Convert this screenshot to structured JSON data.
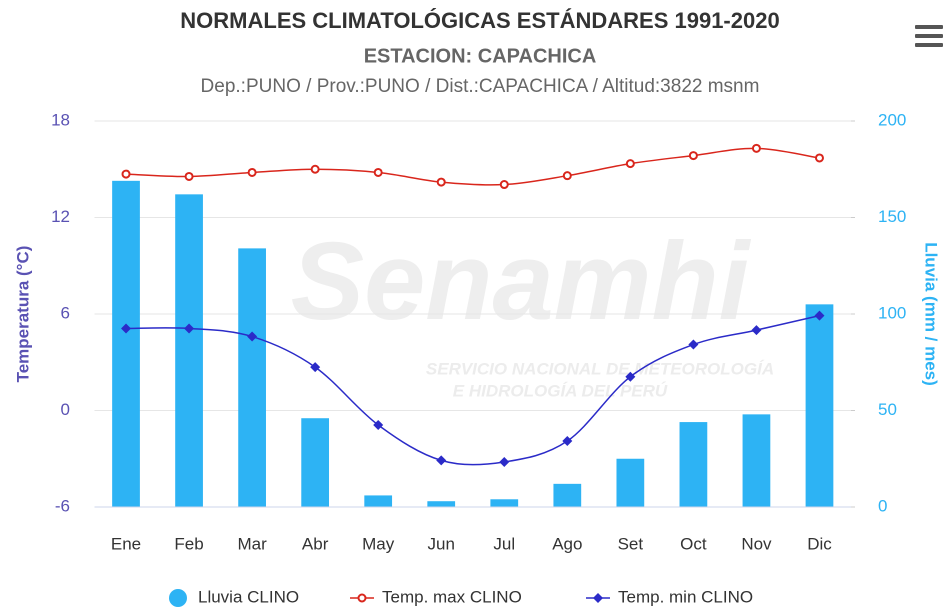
{
  "chart_data": {
    "type": "bar",
    "title": "NORMALES CLIMATOLÓGICAS ESTÁNDARES 1991-2020",
    "subtitle": "ESTACION: CAPACHICA",
    "caption": "Dep.:PUNO / Prov.:PUNO / Dist.:CAPACHICA / Altitud:3822 msnm",
    "watermark": "Senamhi",
    "watermark_lines": [
      "SERVICIO NACIONAL DE METEOROLOGÍA",
      "E HIDROLOGÍA DEL PERÚ"
    ],
    "ylabel": "Temperatura (°C)",
    "y2label": "Lluvia (mm / mes)",
    "categories": [
      "Ene",
      "Feb",
      "Mar",
      "Abr",
      "May",
      "Jun",
      "Jul",
      "Ago",
      "Set",
      "Oct",
      "Nov",
      "Dic"
    ],
    "ylim": [
      -6,
      18
    ],
    "yticks": [
      -6,
      0,
      6,
      12,
      18
    ],
    "y2lim": [
      0,
      200
    ],
    "y2ticks": [
      0,
      50,
      100,
      150,
      200
    ],
    "grid": true,
    "legend": "bottom",
    "series": [
      {
        "name": "Lluvia CLINO",
        "type": "bar",
        "axis": "y2",
        "color": "#2db3f4",
        "values": [
          169,
          162,
          134,
          46,
          6,
          3,
          4,
          12,
          25,
          44,
          48,
          105
        ]
      },
      {
        "name": "Temp. max CLINO",
        "type": "line",
        "marker": "circle",
        "color": "#d9261c",
        "values": [
          14.7,
          14.55,
          14.8,
          15.0,
          14.8,
          14.2,
          14.05,
          14.6,
          15.35,
          15.85,
          16.3,
          15.7
        ]
      },
      {
        "name": "Temp. min CLINO",
        "type": "line",
        "marker": "diamond",
        "color": "#2b2bc8",
        "values": [
          5.1,
          5.1,
          4.6,
          2.7,
          -0.9,
          -3.1,
          -3.2,
          -1.9,
          2.1,
          4.1,
          5.0,
          5.9
        ]
      }
    ]
  }
}
